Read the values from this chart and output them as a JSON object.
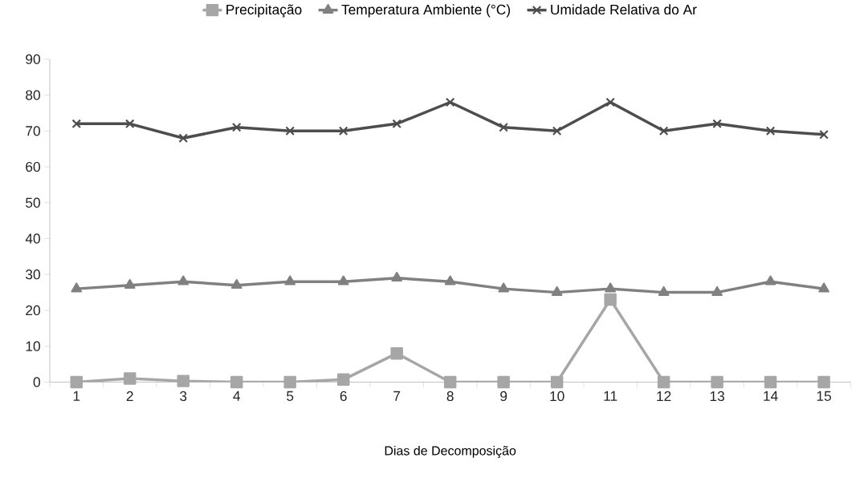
{
  "chart_data": {
    "type": "line",
    "xlabel": "Dias de Decomposição",
    "categories": [
      "1",
      "2",
      "3",
      "4",
      "5",
      "6",
      "7",
      "8",
      "9",
      "10",
      "11",
      "12",
      "13",
      "14",
      "15"
    ],
    "series": [
      {
        "name": "Precipitação",
        "color": "#a6a6a6",
        "marker": "square",
        "values": [
          0,
          1,
          0.3,
          0,
          0,
          0.7,
          8,
          0,
          0,
          0,
          23,
          0,
          0,
          0,
          0
        ]
      },
      {
        "name": "Temperatura Ambiente (°C)",
        "color": "#808080",
        "marker": "triangle",
        "values": [
          26,
          27,
          28,
          27,
          28,
          28,
          29,
          28,
          26,
          25,
          26,
          25,
          25,
          28,
          26
        ]
      },
      {
        "name": "Umidade Relativa do Ar",
        "color": "#4d4d4d",
        "marker": "cross",
        "values": [
          72,
          72,
          68,
          71,
          70,
          70,
          72,
          78,
          71,
          70,
          78,
          70,
          72,
          70,
          69
        ]
      }
    ],
    "ylim": [
      0,
      90
    ],
    "yticks": [
      0,
      10,
      20,
      30,
      40,
      50,
      60,
      70,
      80,
      90
    ],
    "grid": false,
    "legend": "top",
    "line_style": "solid"
  }
}
